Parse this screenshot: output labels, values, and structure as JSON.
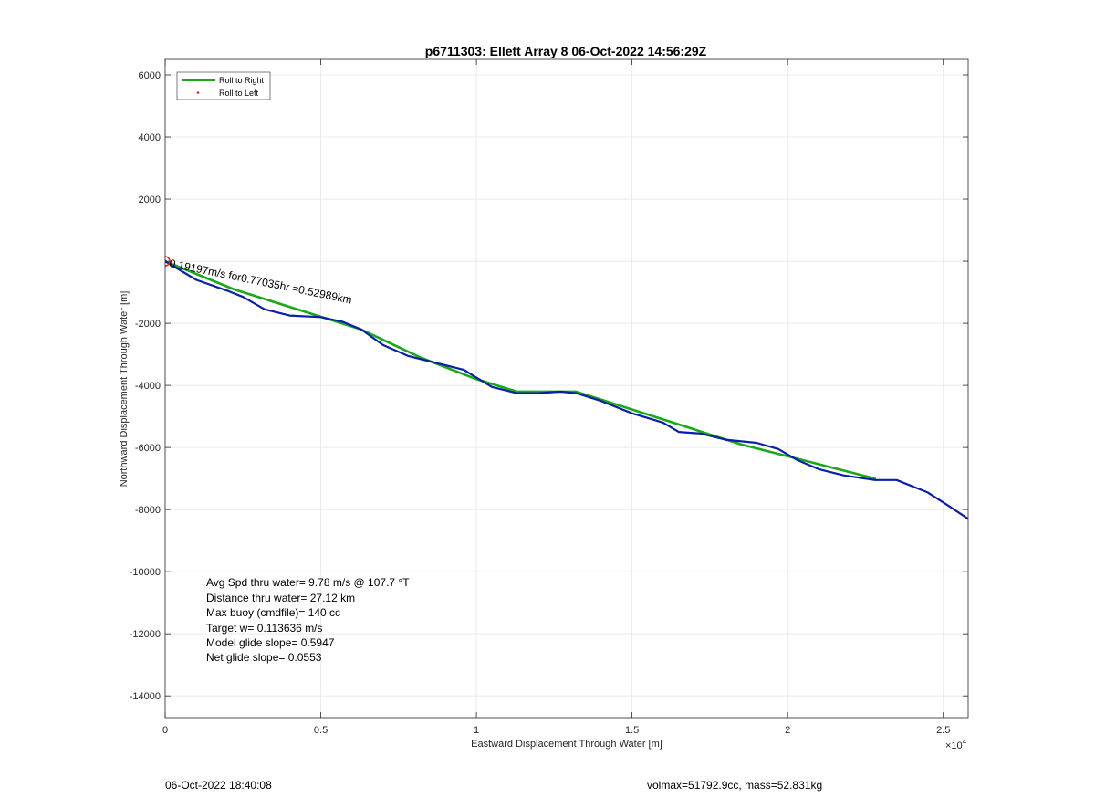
{
  "chart_data": {
    "type": "line",
    "title": "p6711303: Ellett Array 8 06-Oct-2022 14:56:29Z",
    "xlabel": "Eastward Displacement Through Water [m]",
    "ylabel": "Northward Displacement Through Water [m]",
    "x_exponent_label": "×10",
    "x_exponent_power": "4",
    "xlim": [
      0,
      25800
    ],
    "ylim": [
      -14700,
      6500
    ],
    "x_ticks": [
      0,
      5000,
      10000,
      15000,
      20000,
      25000
    ],
    "x_tick_labels": [
      "0",
      "0.5",
      "1",
      "1.5",
      "2",
      "2.5"
    ],
    "y_ticks": [
      -14000,
      -12000,
      -10000,
      -8000,
      -6000,
      -4000,
      -2000,
      0,
      2000,
      4000,
      6000
    ],
    "y_tick_labels": [
      "-14000",
      "-12000",
      "-10000",
      "-8000",
      "-6000",
      "-4000",
      "-2000",
      "",
      "2000",
      "4000",
      "6000"
    ],
    "grid": true,
    "legend_position": "top-left",
    "series": [
      {
        "name": "Roll to Right",
        "color": "#1aa81a",
        "style": "line",
        "x": [
          0,
          2200,
          6300,
          8200,
          10000,
          11300,
          13200,
          18500,
          22800
        ],
        "y": [
          0,
          -900,
          -2200,
          -3100,
          -3800,
          -4200,
          -4200,
          -5900,
          -7000
        ]
      },
      {
        "name": "Roll to Left",
        "color": "#e31a1c",
        "style": "marker",
        "x": [
          0
        ],
        "y": [
          0
        ]
      },
      {
        "name": "",
        "color": "#0a1fa8",
        "style": "line",
        "x": [
          0,
          1000,
          2000,
          2500,
          3200,
          4000,
          5000,
          5700,
          6300,
          7000,
          7800,
          8800,
          9600,
          10000,
          10500,
          11300,
          12000,
          12700,
          13200,
          14000,
          15000,
          15500,
          16000,
          16500,
          17200,
          18000,
          19000,
          19700,
          20300,
          21000,
          21800,
          22800,
          23500,
          24500,
          25200,
          25800
        ],
        "y": [
          0,
          -600,
          -950,
          -1150,
          -1550,
          -1750,
          -1800,
          -1950,
          -2200,
          -2700,
          -3050,
          -3300,
          -3500,
          -3750,
          -4050,
          -4250,
          -4250,
          -4200,
          -4250,
          -4500,
          -4900,
          -5050,
          -5200,
          -5500,
          -5550,
          -5750,
          -5850,
          -6050,
          -6400,
          -6700,
          -6900,
          -7050,
          -7050,
          -7450,
          -7900,
          -8300
        ]
      }
    ],
    "start_marker": {
      "x": 0,
      "y": 0,
      "color": "#e31a1c"
    },
    "annotation": "0.19197m/s for0.77035hr =0.52989km"
  },
  "stats": [
    "Avg Spd thru water=  9.78 m/s @ 107.7 °T",
    "Distance thru water= 27.12 km",
    "Max buoy (cmdfile)= 140 cc",
    "Target w= 0.113636 m/s",
    "Model glide slope= 0.5947",
    "Net glide slope= 0.0553"
  ],
  "footer": {
    "left": "06-Oct-2022 18:40:08",
    "right": "volmax=51792.9cc, mass=52.831kg"
  }
}
